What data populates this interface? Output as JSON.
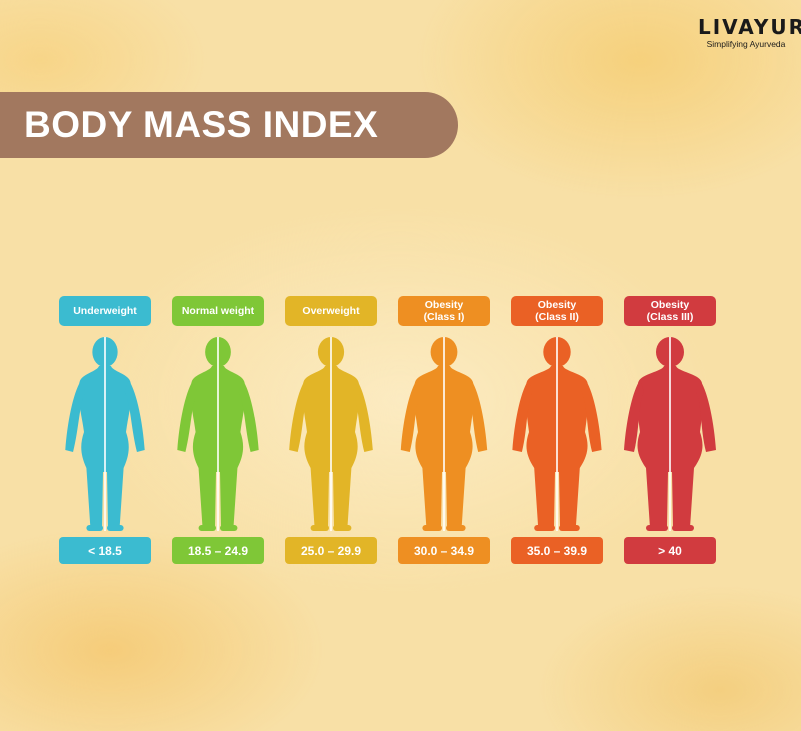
{
  "brand": {
    "name": "LIVAYUR",
    "tagline": "Simplifying Ayurveda"
  },
  "title": "BODY MASS INDEX",
  "categories": [
    {
      "label_lines": [
        "Underweight"
      ],
      "range": "< 18.5",
      "color": "#3bbbd0",
      "figure_width": 0.55
    },
    {
      "label_lines": [
        "Normal weight"
      ],
      "range": "18.5 – 24.9",
      "color": "#7fc737",
      "figure_width": 0.62
    },
    {
      "label_lines": [
        "Overweight"
      ],
      "range": "25.0 – 29.9",
      "color": "#e2b527",
      "figure_width": 0.7
    },
    {
      "label_lines": [
        "Obesity",
        "(Class I)"
      ],
      "range": "30.0 – 34.9",
      "color": "#ee8f22",
      "figure_width": 0.8
    },
    {
      "label_lines": [
        "Obesity",
        "(Class II)"
      ],
      "range": "35.0 – 39.9",
      "color": "#ea6125",
      "figure_width": 0.9
    },
    {
      "label_lines": [
        "Obesity",
        "(Class III)"
      ],
      "range": "> 40",
      "color": "#d13b3f",
      "figure_width": 1.0
    }
  ]
}
